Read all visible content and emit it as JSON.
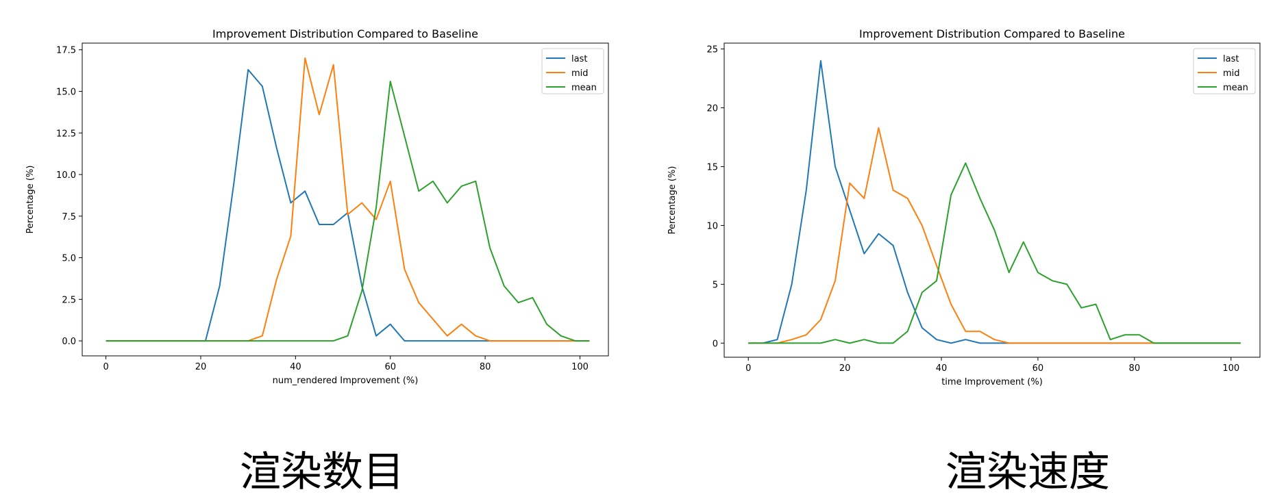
{
  "chart_data": [
    {
      "type": "line",
      "title": "Improvement Distribution Compared to Baseline",
      "xlabel": "num_rendered Improvement (%)",
      "ylabel": "Percentage (%)",
      "xlim": [
        -5,
        106
      ],
      "ylim": [
        -0.9,
        17.9
      ],
      "xticks": [
        0,
        20,
        40,
        60,
        80,
        100
      ],
      "yticks": [
        0.0,
        2.5,
        5.0,
        7.5,
        10.0,
        12.5,
        15.0,
        17.5
      ],
      "ytick_format": "fixed1",
      "legend_position": "upper right",
      "grid": false,
      "x": [
        0,
        3,
        6,
        9,
        12,
        15,
        18,
        21,
        24,
        27,
        30,
        33,
        36,
        39,
        42,
        45,
        48,
        51,
        54,
        57,
        60,
        63,
        66,
        69,
        72,
        75,
        78,
        81,
        84,
        87,
        90,
        93,
        96,
        99,
        102
      ],
      "series": [
        {
          "name": "last",
          "color": "#1f77b4",
          "values": [
            0,
            0,
            0,
            0,
            0,
            0,
            0,
            0,
            3.3,
            9.5,
            16.3,
            15.3,
            11.6,
            8.3,
            9.0,
            7.0,
            7.0,
            7.7,
            3.3,
            0.3,
            1.0,
            0,
            0,
            0,
            0,
            0,
            0,
            0,
            0,
            0,
            0,
            0,
            0,
            0,
            0
          ]
        },
        {
          "name": "mid",
          "color": "#ff7f0e",
          "values": [
            0,
            0,
            0,
            0,
            0,
            0,
            0,
            0,
            0,
            0,
            0,
            0.3,
            3.7,
            6.3,
            17.0,
            13.6,
            16.6,
            7.6,
            8.3,
            7.3,
            9.6,
            4.3,
            2.3,
            1.3,
            0.3,
            1.0,
            0.3,
            0,
            0,
            0,
            0,
            0,
            0,
            0,
            0
          ]
        },
        {
          "name": "mean",
          "color": "#2ca02c",
          "values": [
            0,
            0,
            0,
            0,
            0,
            0,
            0,
            0,
            0,
            0,
            0,
            0,
            0,
            0,
            0,
            0,
            0,
            0.3,
            3.0,
            8.0,
            15.6,
            12.3,
            9.0,
            9.6,
            8.3,
            9.3,
            9.6,
            5.6,
            3.3,
            2.3,
            2.6,
            1.0,
            0.3,
            0,
            0
          ]
        }
      ]
    },
    {
      "type": "line",
      "title": "Improvement Distribution Compared to Baseline",
      "xlabel": "time Improvement (%)",
      "ylabel": "Percentage (%)",
      "xlim": [
        -5,
        106
      ],
      "ylim": [
        -1.2,
        25.5
      ],
      "xticks": [
        0,
        20,
        40,
        60,
        80,
        100
      ],
      "yticks": [
        0,
        5,
        10,
        15,
        20,
        25
      ],
      "ytick_format": "int",
      "legend_position": "upper right",
      "grid": false,
      "x": [
        0,
        3,
        6,
        9,
        12,
        15,
        18,
        21,
        24,
        27,
        30,
        33,
        36,
        39,
        42,
        45,
        48,
        51,
        54,
        57,
        60,
        63,
        66,
        69,
        72,
        75,
        78,
        81,
        84,
        87,
        90,
        93,
        96,
        99,
        102
      ],
      "series": [
        {
          "name": "last",
          "color": "#1f77b4",
          "values": [
            0,
            0,
            0.3,
            5.0,
            13.0,
            24.0,
            15.0,
            11.3,
            7.6,
            9.3,
            8.3,
            4.3,
            1.3,
            0.3,
            0,
            0.3,
            0,
            0,
            0,
            0,
            0,
            0,
            0,
            0,
            0,
            0,
            0,
            0,
            0,
            0,
            0,
            0,
            0,
            0,
            0
          ]
        },
        {
          "name": "mid",
          "color": "#ff7f0e",
          "values": [
            0,
            0,
            0,
            0.3,
            0.7,
            2.0,
            5.3,
            13.6,
            12.3,
            18.3,
            13.0,
            12.3,
            10.0,
            6.6,
            3.3,
            1.0,
            1.0,
            0.3,
            0,
            0,
            0,
            0,
            0,
            0,
            0,
            0,
            0,
            0,
            0,
            0,
            0,
            0,
            0,
            0,
            0
          ]
        },
        {
          "name": "mean",
          "color": "#2ca02c",
          "values": [
            0,
            0,
            0,
            0,
            0,
            0,
            0.3,
            0,
            0.3,
            0,
            0,
            1.0,
            4.3,
            5.3,
            12.6,
            15.3,
            12.3,
            9.6,
            6.0,
            8.6,
            6.0,
            5.3,
            5.0,
            3.0,
            3.3,
            0.3,
            0.7,
            0.7,
            0,
            0,
            0,
            0,
            0,
            0,
            0
          ]
        }
      ]
    }
  ],
  "captions": {
    "left": "渲染数目",
    "right": "渲染速度"
  }
}
